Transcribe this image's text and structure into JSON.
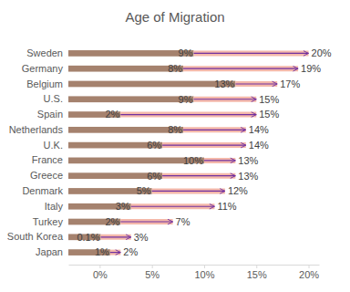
{
  "chart_data": {
    "type": "bar",
    "title": "Age of Migration",
    "orientation": "horizontal",
    "data_labels": true,
    "categories": [
      "Sweden",
      "Germany",
      "Belgium",
      "U.S.",
      "Spain",
      "Netherlands",
      "U.K.",
      "France",
      "Greece",
      "Denmark",
      "Italy",
      "Turkey",
      "South Korea",
      "Japan"
    ],
    "series": [
      {
        "type": "bar",
        "color": "#a5826e",
        "values": [
          9,
          8,
          13,
          9,
          2,
          8,
          6,
          10,
          6,
          5,
          3,
          2,
          0.1,
          1
        ],
        "value_labels": [
          "9%",
          "8%",
          "13%",
          "9%",
          "2%",
          "8%",
          "6%",
          "10%",
          "6%",
          "5%",
          "3%",
          "2%",
          "0.1%",
          "1%"
        ]
      },
      {
        "type": "arrow",
        "color": "#7030a0",
        "values": [
          20,
          19,
          17,
          15,
          15,
          14,
          14,
          13,
          13,
          12,
          11,
          7,
          3,
          2
        ],
        "value_labels": [
          "20%",
          "19%",
          "17%",
          "15%",
          "15%",
          "14%",
          "14%",
          "13%",
          "13%",
          "12%",
          "11%",
          "7%",
          "3%",
          "2%"
        ]
      }
    ],
    "xlim": [
      -3,
      21
    ],
    "xticks": [
      {
        "value": 0,
        "label": "0%"
      },
      {
        "value": 5,
        "label": "5%"
      },
      {
        "value": 10,
        "label": "10%"
      },
      {
        "value": 15,
        "label": "15%"
      },
      {
        "value": 20,
        "label": "20%"
      }
    ]
  }
}
